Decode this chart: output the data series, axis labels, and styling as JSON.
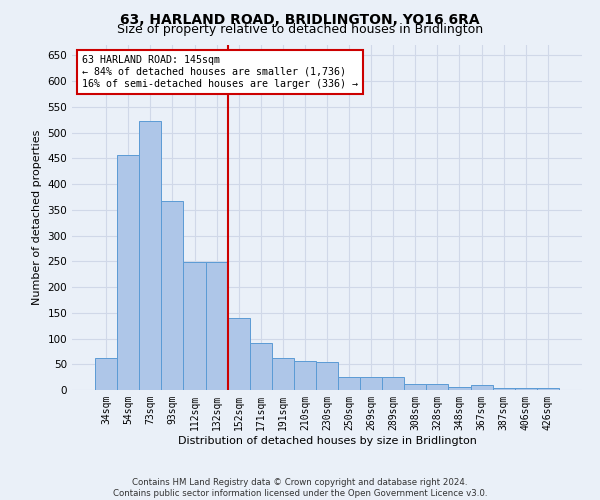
{
  "title": "63, HARLAND ROAD, BRIDLINGTON, YO16 6RA",
  "subtitle": "Size of property relative to detached houses in Bridlington",
  "xlabel": "Distribution of detached houses by size in Bridlington",
  "ylabel": "Number of detached properties",
  "categories": [
    "34sqm",
    "54sqm",
    "73sqm",
    "93sqm",
    "112sqm",
    "132sqm",
    "152sqm",
    "171sqm",
    "191sqm",
    "210sqm",
    "230sqm",
    "250sqm",
    "269sqm",
    "289sqm",
    "308sqm",
    "328sqm",
    "348sqm",
    "367sqm",
    "387sqm",
    "406sqm",
    "426sqm"
  ],
  "values": [
    62,
    457,
    522,
    368,
    248,
    248,
    140,
    91,
    62,
    57,
    54,
    26,
    26,
    26,
    11,
    11,
    6,
    9,
    4,
    3,
    3
  ],
  "bar_color": "#aec6e8",
  "bar_edge_color": "#5b9bd5",
  "grid_color": "#d0d8e8",
  "background_color": "#eaf0f8",
  "vline_color": "#cc0000",
  "annotation_box_text": "63 HARLAND ROAD: 145sqm\n← 84% of detached houses are smaller (1,736)\n16% of semi-detached houses are larger (336) →",
  "annotation_box_color": "#cc0000",
  "annotation_box_bg": "#ffffff",
  "ylim": [
    0,
    670
  ],
  "yticks": [
    0,
    50,
    100,
    150,
    200,
    250,
    300,
    350,
    400,
    450,
    500,
    550,
    600,
    650
  ],
  "footer": "Contains HM Land Registry data © Crown copyright and database right 2024.\nContains public sector information licensed under the Open Government Licence v3.0.",
  "title_fontsize": 10,
  "subtitle_fontsize": 9,
  "xlabel_fontsize": 8,
  "ylabel_fontsize": 8
}
